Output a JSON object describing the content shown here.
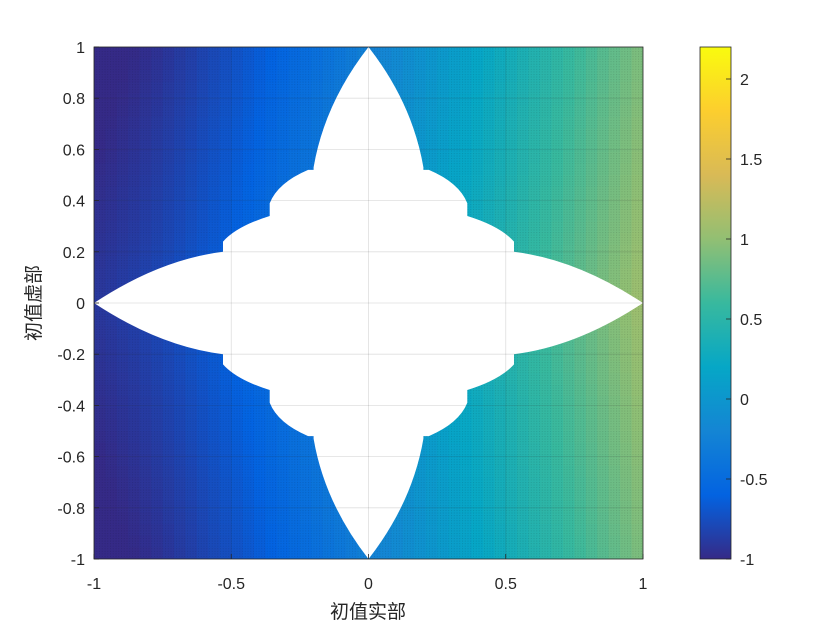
{
  "chart_data": {
    "type": "heatmap",
    "title": "",
    "xlabel": "初值实部",
    "ylabel": "初值虚部",
    "xlim": [
      -1,
      1
    ],
    "ylim": [
      -1,
      1
    ],
    "x_ticks": [
      "-1",
      "-0.5",
      "0",
      "0.5",
      "1"
    ],
    "y_ticks": [
      "1",
      "0.8",
      "0.6",
      "0.4",
      "0.2",
      "0",
      "-0.2",
      "-0.4",
      "-0.6",
      "-0.8",
      "-1"
    ],
    "grid": true,
    "colormap": "parula",
    "colorbar": {
      "range": [
        -1,
        2.2
      ],
      "tick_values": [
        2,
        1.5,
        1,
        0.5,
        0,
        -0.5,
        -1
      ],
      "tick_labels": [
        "2",
        "1.5",
        "1",
        "0.5",
        "0",
        "-0.5",
        "-1"
      ],
      "placement": "right"
    },
    "missing_region": {
      "shape": "four-pointed star with scalloped inner edges",
      "color": "#ffffff",
      "tips": [
        [
          1,
          0
        ],
        [
          -1,
          0
        ],
        [
          0,
          1
        ],
        [
          0,
          -1
        ]
      ],
      "inner_square_half_width": 0.5
    },
    "value_description": "dark blue (about -1) on the left side increasing toward yellow (about 2.2) on the right side"
  }
}
